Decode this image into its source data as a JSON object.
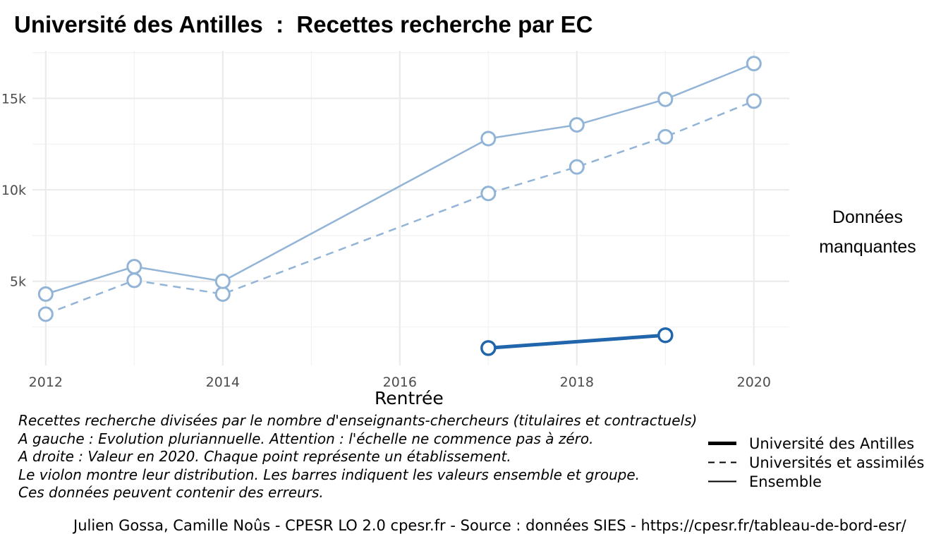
{
  "chart_data": {
    "type": "line",
    "title": "Université des Antilles  :  Recettes recherche par EC",
    "xlabel": "Rentrée",
    "ylabel": "",
    "xlim": [
      2011.85,
      2020.4
    ],
    "ylim": [
      400,
      17600
    ],
    "x_ticks": [
      2012,
      2014,
      2016,
      2018,
      2020
    ],
    "x_tick_labels": [
      "2012",
      "2014",
      "2016",
      "2018",
      "2020"
    ],
    "y_ticks": [
      5000,
      10000,
      15000
    ],
    "y_tick_labels": [
      "5k",
      "10k",
      "15k"
    ],
    "grid": true,
    "legend_position": "bottom-right",
    "series": [
      {
        "name": "Université des Antilles",
        "line_style": "solid-thick",
        "color": "#2166ac",
        "points": [
          [
            2017,
            1350
          ],
          [
            2019,
            2050
          ]
        ]
      },
      {
        "name": "Universités et assimilés",
        "line_style": "dashed",
        "color": "#92b4d6",
        "points": [
          [
            2012,
            3200
          ],
          [
            2013,
            5050
          ],
          [
            2014,
            4300
          ],
          [
            2017,
            9800
          ],
          [
            2018,
            11250
          ],
          [
            2019,
            12900
          ],
          [
            2020,
            14850
          ]
        ]
      },
      {
        "name": "Ensemble",
        "line_style": "solid",
        "color": "#92b4d6",
        "points": [
          [
            2012,
            4300
          ],
          [
            2013,
            5800
          ],
          [
            2014,
            5000
          ],
          [
            2017,
            12800
          ],
          [
            2018,
            13550
          ],
          [
            2019,
            14950
          ],
          [
            2020,
            16900
          ]
        ]
      }
    ]
  },
  "side_panel": {
    "line1": "Données",
    "line2": "manquantes"
  },
  "caption": [
    "Recettes recherche divisées par le nombre d'enseignants-chercheurs (titulaires et contractuels)",
    "A gauche : Evolution pluriannuelle. Attention : l'échelle ne commence pas à zéro.",
    "A droite : Valeur en 2020. Chaque point représente un établissement.",
    "Le violon montre leur distribution. Les barres indiquent les valeurs ensemble et groupe.",
    "Ces données peuvent contenir des erreurs."
  ],
  "legend": [
    {
      "label": "Université des Antilles",
      "style": "thick"
    },
    {
      "label": "Universités et assimilés",
      "style": "dashed"
    },
    {
      "label": "Ensemble",
      "style": "solid"
    }
  ],
  "credits": "Julien Gossa, Camille Noûs - CPESR LO 2.0 cpesr.fr - Source : données SIES - https://cpesr.fr/tableau-de-bord-esr/"
}
